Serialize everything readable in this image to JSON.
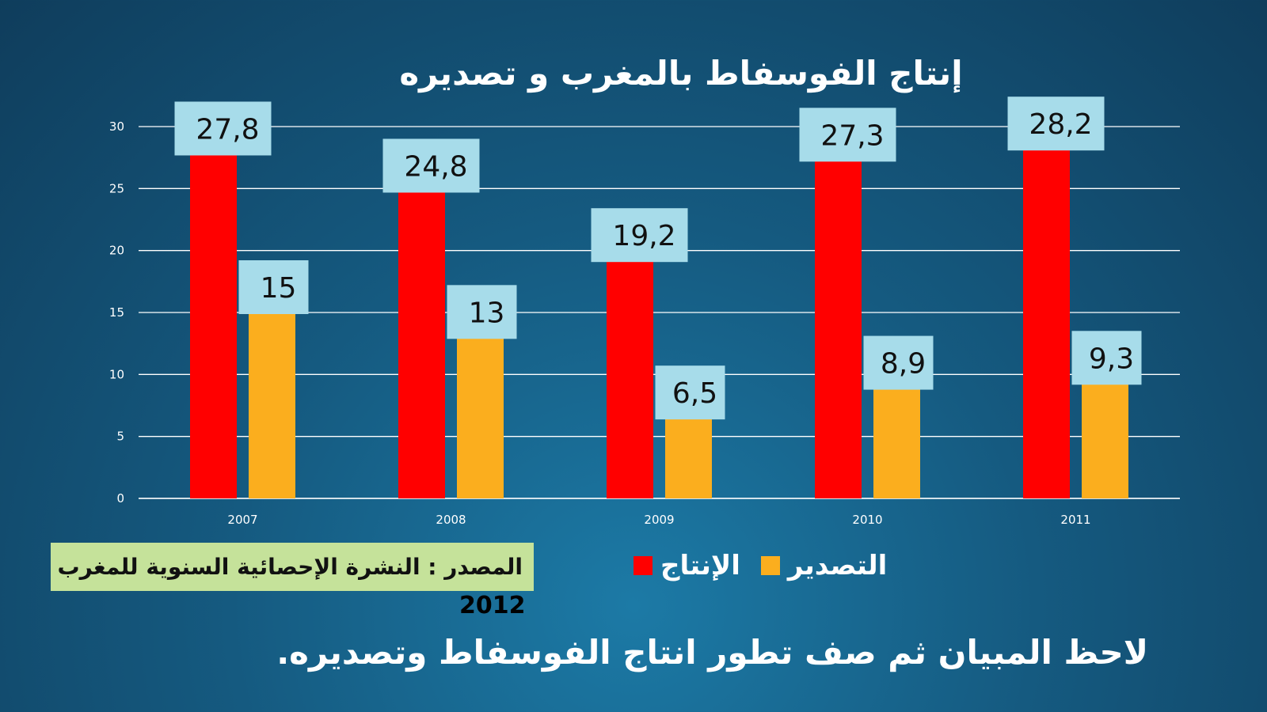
{
  "chart_data": {
    "type": "bar",
    "title": "إنتاج الفوسفاط بالمغرب و تصديره",
    "categories": [
      "2007",
      "2008",
      "2009",
      "2010",
      "2011"
    ],
    "series": [
      {
        "name": "الإنتاج",
        "color": "#ff0000",
        "values": [
          27.8,
          24.8,
          19.2,
          27.3,
          28.2
        ],
        "labels": [
          "27,8",
          "24,8",
          "19,2",
          "27,3",
          "28,2"
        ]
      },
      {
        "name": "التصدير",
        "color": "#fbae1e",
        "values": [
          15,
          13,
          6.5,
          8.9,
          9.3
        ],
        "labels": [
          "15",
          "13",
          "6,5",
          "8,9",
          "9,3"
        ]
      }
    ],
    "yticks": [
      0,
      5,
      10,
      15,
      20,
      25,
      30
    ],
    "ylim": [
      0,
      30
    ],
    "grid": true,
    "label_box_color": "#a7dcea",
    "legend_position": "bottom"
  },
  "source": {
    "text": "المصدر : النشرة الإحصائية السنوية للمغرب",
    "year": "2012"
  },
  "instruction": "لاحظ المبيان ثم صف تطور انتاج الفوسفاط وتصديره."
}
